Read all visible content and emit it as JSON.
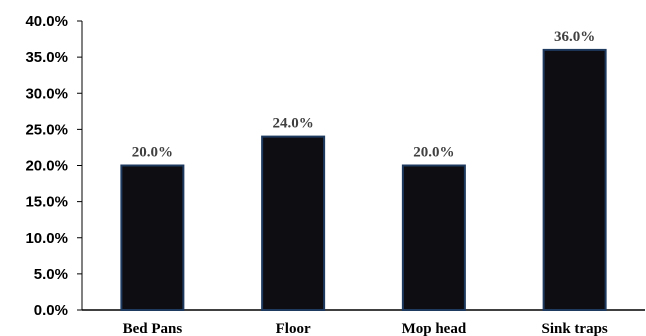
{
  "chart_data": {
    "type": "bar",
    "title": "",
    "xlabel": "",
    "ylabel": "",
    "categories": [
      "Bed Pans",
      "Floor",
      "Mop head",
      "Sink traps"
    ],
    "values": [
      20.0,
      24.0,
      20.0,
      36.0
    ],
    "data_labels": [
      "20.0%",
      "24.0%",
      "20.0%",
      "36.0%"
    ],
    "ylim": [
      0,
      40
    ],
    "y_ticks": [
      0,
      5,
      10,
      15,
      20,
      25,
      30,
      35,
      40
    ],
    "y_tick_labels": [
      "0.0%",
      "5.0%",
      "10.0%",
      "15.0%",
      "20.0%",
      "25.0%",
      "30.0%",
      "35.0%",
      "40.0%"
    ],
    "grid": false,
    "legend": "none",
    "bar_color": "#0d0d12",
    "bar_edge_color": "#1f3a5f"
  }
}
